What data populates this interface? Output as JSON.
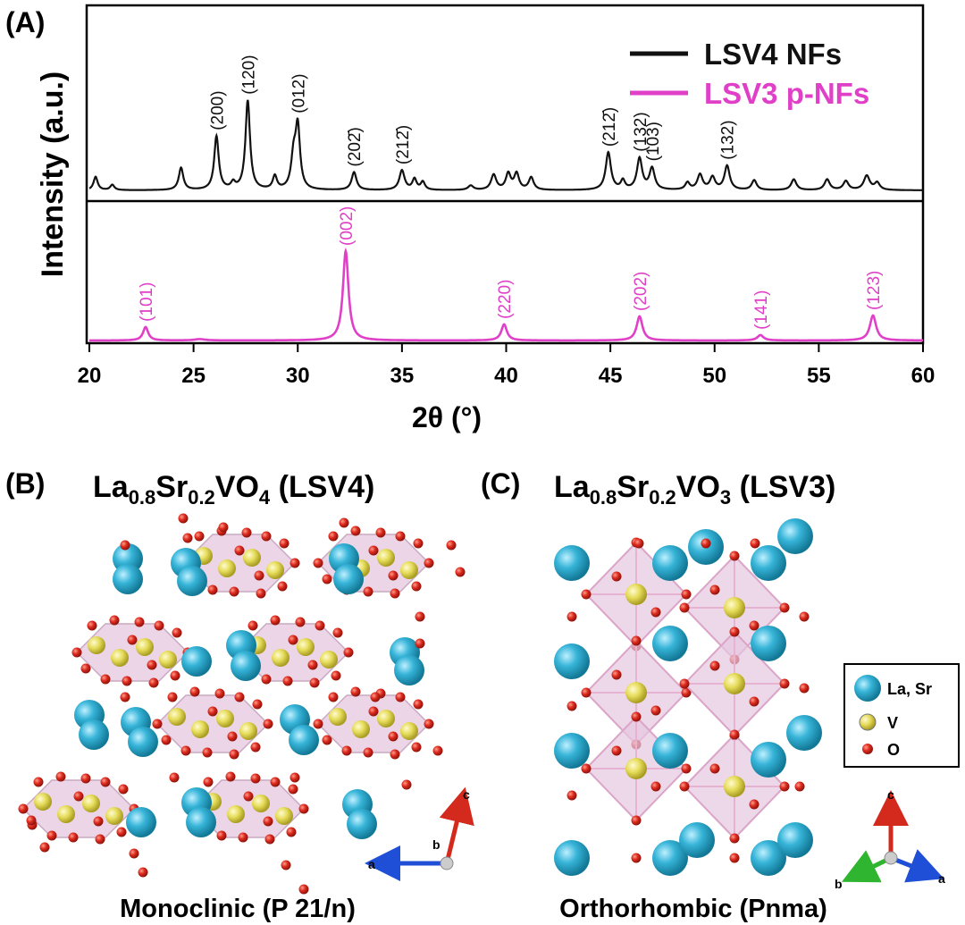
{
  "panel_labels": {
    "a": "(A)",
    "b": "(B)",
    "c": "(C)"
  },
  "colors": {
    "lsv4": "#111111",
    "lsv3": "#e040c8",
    "la_sr": "#2ba7cc",
    "v": "#e6dc5a",
    "o": "#d42a1e",
    "polyhedron": "#e6c7df",
    "axis_a": "#1f4fd6",
    "axis_b": "#2fb52f",
    "axis_c": "#d42a1e"
  },
  "chart_data": {
    "type": "line",
    "xlabel": "2θ (°)",
    "ylabel": "Intensity (a.u.)",
    "xlim": [
      20,
      60
    ],
    "xticks": [
      20,
      25,
      30,
      35,
      40,
      45,
      50,
      55,
      60
    ],
    "legend": {
      "placement": "top-right"
    },
    "series": [
      {
        "name": "LSV4 NFs",
        "color": "#111111",
        "panel": "top",
        "baseline": 0.03,
        "peaks": [
          [
            20.3,
            0.15,
            0.12
          ],
          [
            21.1,
            0.06,
            0.12
          ],
          [
            24.4,
            0.25,
            0.13
          ],
          [
            26.1,
            0.6,
            0.13
          ],
          [
            26.9,
            0.07,
            0.12
          ],
          [
            27.6,
            1.0,
            0.13
          ],
          [
            28.9,
            0.15,
            0.12
          ],
          [
            29.8,
            0.35,
            0.14
          ],
          [
            30.0,
            0.68,
            0.13
          ],
          [
            32.7,
            0.2,
            0.14
          ],
          [
            35.0,
            0.22,
            0.15
          ],
          [
            35.6,
            0.12,
            0.12
          ],
          [
            36.0,
            0.09,
            0.12
          ],
          [
            38.3,
            0.05,
            0.15
          ],
          [
            39.4,
            0.17,
            0.15
          ],
          [
            40.1,
            0.18,
            0.14
          ],
          [
            40.5,
            0.18,
            0.14
          ],
          [
            41.2,
            0.14,
            0.14
          ],
          [
            44.9,
            0.42,
            0.15
          ],
          [
            45.6,
            0.1,
            0.12
          ],
          [
            46.4,
            0.35,
            0.15
          ],
          [
            47.0,
            0.24,
            0.15
          ],
          [
            48.7,
            0.08,
            0.13
          ],
          [
            49.3,
            0.17,
            0.15
          ],
          [
            49.9,
            0.14,
            0.15
          ],
          [
            50.6,
            0.27,
            0.15
          ],
          [
            51.9,
            0.11,
            0.14
          ],
          [
            53.8,
            0.12,
            0.15
          ],
          [
            55.4,
            0.12,
            0.15
          ],
          [
            56.3,
            0.1,
            0.15
          ],
          [
            57.3,
            0.16,
            0.17
          ],
          [
            57.8,
            0.08,
            0.15
          ]
        ]
      },
      {
        "name": "LSV3 p-NFs",
        "color": "#e040c8",
        "panel": "bottom",
        "baseline": 0.01,
        "peaks": [
          [
            22.7,
            0.15,
            0.15
          ],
          [
            25.3,
            0.015,
            0.3
          ],
          [
            32.3,
            1.0,
            0.16
          ],
          [
            39.9,
            0.18,
            0.16
          ],
          [
            46.4,
            0.27,
            0.17
          ],
          [
            52.2,
            0.06,
            0.18
          ],
          [
            57.6,
            0.28,
            0.18
          ]
        ]
      }
    ],
    "annotations_lsv4": [
      {
        "text": "(200)",
        "x": 26.1
      },
      {
        "text": "(120)",
        "x": 27.6
      },
      {
        "text": "(012)",
        "x": 30.0
      },
      {
        "text": "(202̄)",
        "x": 32.7
      },
      {
        "text": "(212̄)",
        "x": 35.0
      },
      {
        "text": "(212̄)",
        "x": 44.9
      },
      {
        "text": "(132)",
        "x": 46.4
      },
      {
        "text": "(103)",
        "x": 47.0
      },
      {
        "text": "(132)",
        "x": 50.6
      }
    ],
    "annotations_lsv3": [
      {
        "text": "(101)",
        "x": 22.7
      },
      {
        "text": "(002)",
        "x": 32.3
      },
      {
        "text": "(220)",
        "x": 39.9
      },
      {
        "text": "(202)",
        "x": 46.4
      },
      {
        "text": "(141)",
        "x": 52.2
      },
      {
        "text": "(123)",
        "x": 57.6
      }
    ]
  },
  "panel_b": {
    "title_main": "La",
    "sub1": "0.8",
    "title_mid": "Sr",
    "sub2": "0.2",
    "title_vo": "VO",
    "sub3": "4",
    "title_tail": " (LSV4)",
    "caption": "Monoclinic (P 21/n)",
    "axes": {
      "a": "a",
      "b": "b",
      "c": "c"
    }
  },
  "panel_c": {
    "title_main": "La",
    "sub1": "0.8",
    "title_mid": "Sr",
    "sub2": "0.2",
    "title_vo": "VO",
    "sub3": "3",
    "title_tail": " (LSV3)",
    "caption": "Orthorhombic (Pnma)",
    "axes": {
      "a": "a",
      "b": "b",
      "c": "c"
    }
  },
  "atom_legend": [
    {
      "label": "La, Sr",
      "kind": "la_sr"
    },
    {
      "label": "V",
      "kind": "v"
    },
    {
      "label": "O",
      "kind": "o"
    }
  ]
}
